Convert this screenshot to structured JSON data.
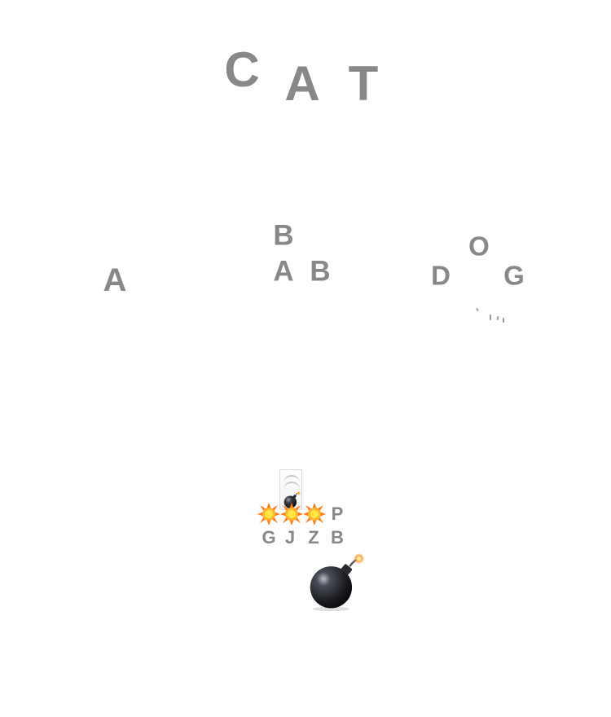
{
  "target_word": [
    "C",
    "A",
    "T"
  ],
  "floating_words": [
    {
      "letters": [
        "A"
      ]
    },
    {
      "letters": [
        "B",
        "A",
        "B"
      ]
    },
    {
      "letters": [
        "O",
        "D",
        "G"
      ]
    }
  ],
  "launcher": {
    "top_row": [
      "P"
    ],
    "bottom_row": [
      "G",
      "J",
      "Z",
      "B"
    ]
  },
  "icons": {
    "player": "bomb-icon",
    "stack": "bomb-stack-icon",
    "explosion": "explosion-icon"
  },
  "colors": {
    "letter": "#888888",
    "background": "#ffffff",
    "bomb_body": "#2b2b33",
    "fuse_spark": "#ff8a2a",
    "explosion_core": "#ffe640",
    "explosion_outer": "#ff7a1a"
  }
}
